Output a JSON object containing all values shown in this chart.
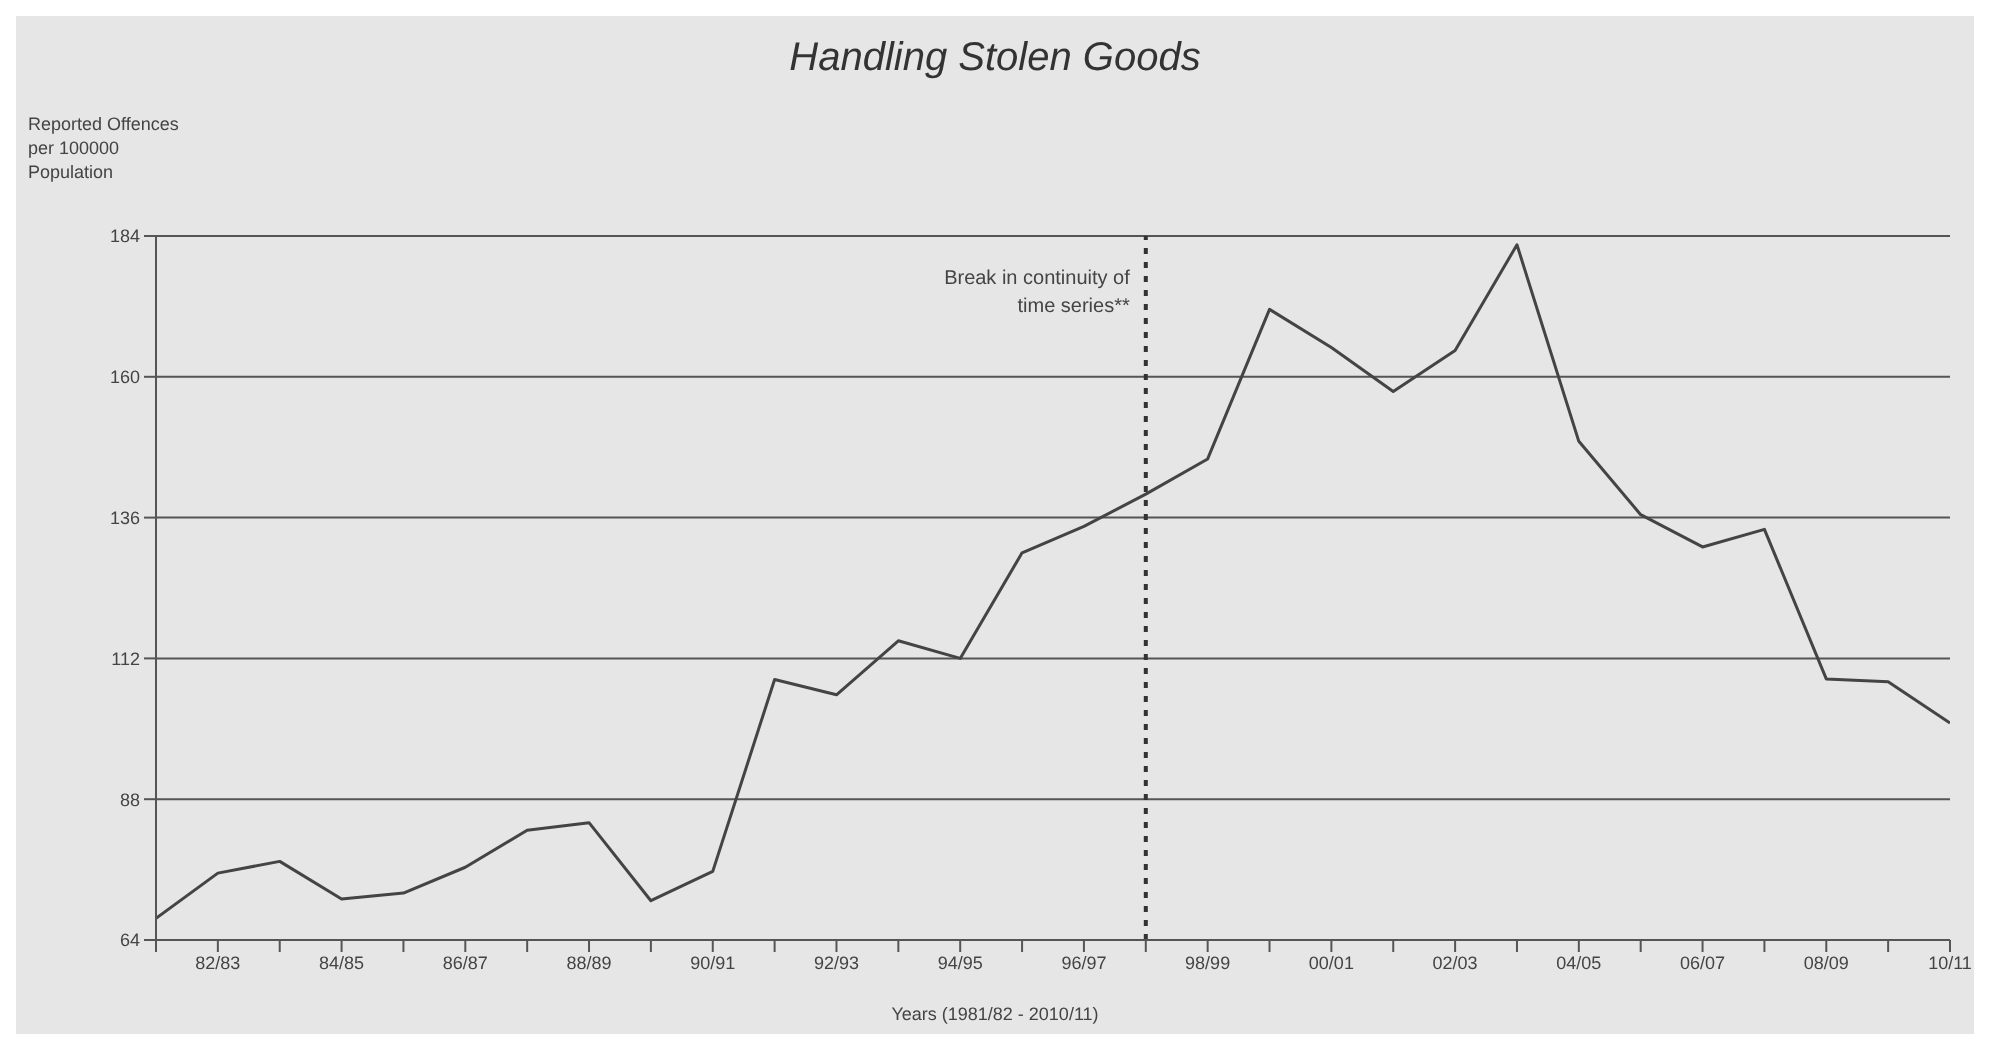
{
  "chart_data": {
    "type": "line",
    "title": "Handling Stolen Goods",
    "xlabel": "Years (1981/82 - 2010/11)",
    "ylabel": "Reported Offences per 100000 Population",
    "categories": [
      null,
      "82/83",
      null,
      "84/85",
      null,
      "86/87",
      null,
      "88/89",
      null,
      "90/91",
      null,
      "92/93",
      null,
      "94/95",
      null,
      "96/97",
      null,
      "98/99",
      null,
      "00/01",
      null,
      "02/03",
      null,
      "04/05",
      null,
      "06/07",
      null,
      "08/09",
      null,
      "10/11"
    ],
    "series": [
      {
        "color": "#444444",
        "values": [
          67.7,
          75.4,
          77.4,
          71,
          72,
          76.4,
          82.7,
          84,
          70.7,
          75.7,
          108.4,
          105.8,
          115,
          112,
          130,
          134.5,
          140,
          146,
          171.5,
          165,
          157.5,
          164.5,
          182.5,
          149,
          136.5,
          131,
          134,
          108.5,
          108,
          101
        ]
      }
    ],
    "ylim": [
      64,
      184
    ],
    "yticks": [
      64,
      88,
      112,
      136,
      160,
      184
    ],
    "grid": "y",
    "annotations": [
      "Break in continuity of time series**"
    ],
    "marker": "none",
    "line_style": "solid",
    "legend": false
  }
}
